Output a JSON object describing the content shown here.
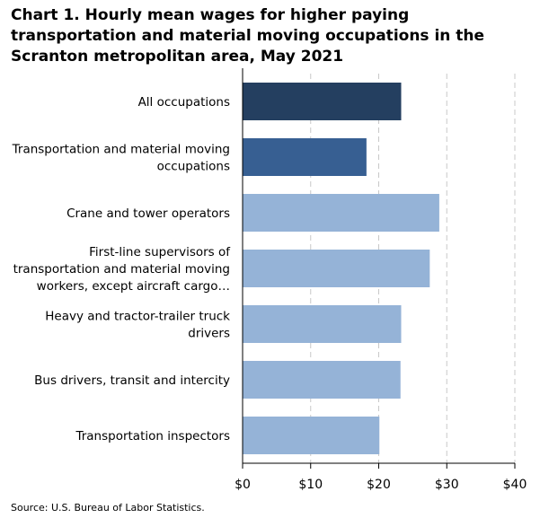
{
  "chart_data": {
    "type": "bar",
    "orientation": "horizontal",
    "title": "Chart 1. Hourly mean wages for higher paying transportation and material moving occupations in the Scranton metropolitan area, May 2021",
    "categories": [
      [
        "All occupations"
      ],
      [
        "Transportation and material moving",
        "occupations"
      ],
      [
        "Crane and tower operators"
      ],
      [
        "First-line supervisors of",
        "transportation and material moving",
        "workers, except aircraft cargo…"
      ],
      [
        "Heavy and tractor-trailer truck",
        "drivers"
      ],
      [
        "Bus drivers, transit and intercity"
      ],
      [
        "Transportation inspectors"
      ]
    ],
    "values": [
      23.3,
      18.2,
      28.9,
      27.5,
      23.3,
      23.2,
      20.1
    ],
    "colors": [
      "#243f60",
      "#375f92",
      "#95b3d7",
      "#95b3d7",
      "#95b3d7",
      "#95b3d7",
      "#95b3d7"
    ],
    "x_ticks": [
      "$0",
      "$10",
      "$20",
      "$30",
      "$40"
    ],
    "xlim": [
      0,
      40
    ],
    "grid": "vertical dashed",
    "source": "Source: U.S. Bureau of Labor Statistics."
  }
}
